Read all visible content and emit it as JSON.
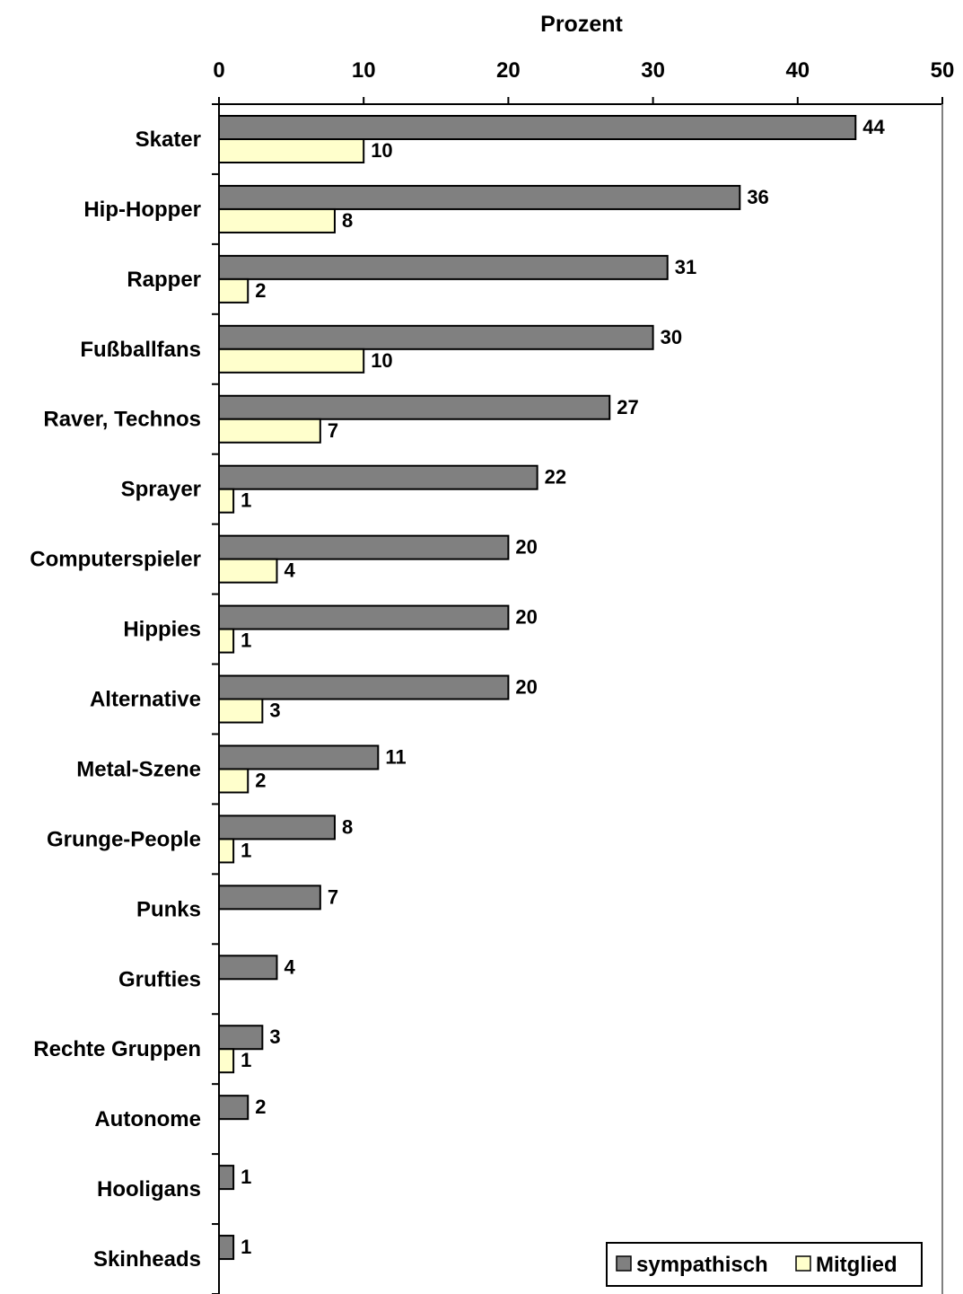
{
  "chart_data": {
    "type": "bar",
    "orientation": "horizontal",
    "xlabel": "Prozent",
    "xlim": [
      0,
      50
    ],
    "xticks": [
      0,
      10,
      20,
      30,
      40,
      50
    ],
    "grid": false,
    "legend_position": "bottom-right",
    "categories": [
      "Skater",
      "Hip-Hopper",
      "Rapper",
      "Fußballfans",
      "Raver, Technos",
      "Sprayer",
      "Computerspieler",
      "Hippies",
      "Alternative",
      "Metal-Szene",
      "Grunge-People",
      "Punks",
      "Grufties",
      "Rechte Gruppen",
      "Autonome",
      "Hooligans",
      "Skinheads"
    ],
    "series": [
      {
        "name": "sympathisch",
        "color": "#808080",
        "values": [
          44,
          36,
          31,
          30,
          27,
          22,
          20,
          20,
          20,
          11,
          8,
          7,
          4,
          3,
          2,
          1,
          1
        ]
      },
      {
        "name": "Mitglied",
        "color": "#FFFFCC",
        "values": [
          10,
          8,
          2,
          10,
          7,
          1,
          4,
          1,
          3,
          2,
          1,
          null,
          null,
          1,
          null,
          null,
          null
        ]
      }
    ]
  }
}
